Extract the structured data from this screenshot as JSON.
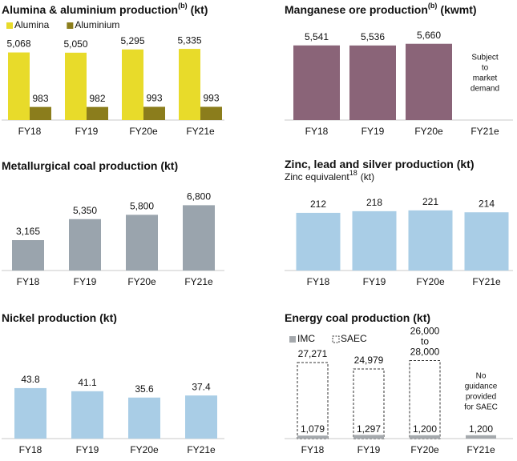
{
  "chart_data": [
    {
      "type": "bar",
      "title": "Alumina & aluminium production",
      "title_sup": "(b)",
      "title_unit": "(kt)",
      "categories": [
        "FY18",
        "FY19",
        "FY20e",
        "FY21e"
      ],
      "layout": "grouped",
      "ylim": [
        0,
        6000
      ],
      "series": [
        {
          "name": "Alumina",
          "color": "#e8db2a",
          "values": [
            5068,
            5050,
            5295,
            5335
          ],
          "value_labels": [
            "5,068",
            "5,050",
            "5,295",
            "5,335"
          ]
        },
        {
          "name": "Aluminium",
          "color": "#8b7d1c",
          "values": [
            983,
            982,
            993,
            993
          ],
          "value_labels": [
            "983",
            "982",
            "993",
            "993"
          ]
        }
      ]
    },
    {
      "type": "bar",
      "title": "Manganese ore production",
      "title_sup": "(b)",
      "title_unit": "(kwmt)",
      "categories": [
        "FY18",
        "FY19",
        "FY20e",
        "FY21e"
      ],
      "ylim": [
        0,
        6000
      ],
      "color": "#8a6478",
      "values": [
        5541,
        5536,
        5660,
        null
      ],
      "value_labels": [
        "5,541",
        "5,536",
        "5,660",
        null
      ],
      "annotation": [
        "Subject",
        "to",
        "market",
        "demand"
      ]
    },
    {
      "type": "bar",
      "title": "Metallurgical coal production (kt)",
      "categories": [
        "FY18",
        "FY19",
        "FY20e",
        "FY21e"
      ],
      "ylim": [
        0,
        8000
      ],
      "color": "#9aa4ad",
      "values": [
        3165,
        5350,
        5800,
        6800
      ],
      "value_labels": [
        "3,165",
        "5,350",
        "5,800",
        "6,800"
      ]
    },
    {
      "type": "bar",
      "title": "Zinc, lead and silver production (kt)",
      "subtitle": "Zinc equivalent",
      "subtitle_sup": "18",
      "subtitle_unit": "(kt)",
      "categories": [
        "FY18",
        "FY19",
        "FY20e",
        "FY21e"
      ],
      "ylim": [
        0,
        250
      ],
      "color": "#a9cde6",
      "values": [
        212,
        218,
        221,
        214
      ]
    },
    {
      "type": "bar",
      "title": "Nickel production (kt)",
      "categories": [
        "FY18",
        "FY19",
        "FY20e",
        "FY21e"
      ],
      "ylim": [
        0,
        50
      ],
      "color": "#a9cde6",
      "values": [
        43.8,
        41.1,
        35.6,
        37.4
      ]
    },
    {
      "type": "bar",
      "title": "Energy coal production (kt)",
      "categories": [
        "FY18",
        "FY19",
        "FY20e",
        "FY21e"
      ],
      "layout": "overlay",
      "ylim": [
        0,
        30000
      ],
      "series": [
        {
          "name": "SAEC",
          "color": "#333333",
          "style": "dashed",
          "values": [
            27271,
            24979,
            28000,
            null
          ],
          "value_labels": [
            "27,271",
            "24,979",
            [
              "26,000",
              "to",
              "28,000"
            ],
            null
          ]
        },
        {
          "name": "IMC",
          "color": "#a5a9ad",
          "values": [
            1079,
            1297,
            1200,
            1200
          ],
          "value_labels": [
            "1,079",
            "1,297",
            "1,200",
            "1,200"
          ],
          "label_inside": true
        }
      ],
      "legend_order": [
        1,
        0
      ],
      "annotation": [
        "No",
        "guidance",
        "provided",
        "for SAEC"
      ]
    }
  ]
}
